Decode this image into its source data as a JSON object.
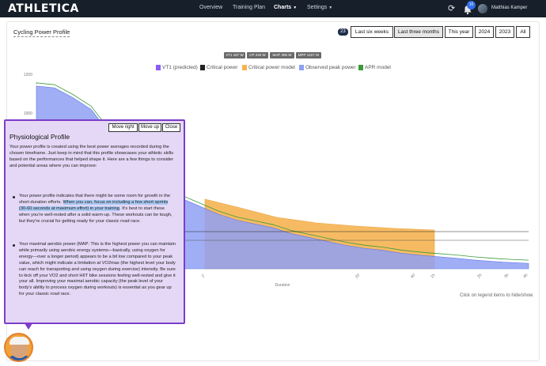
{
  "app": {
    "logo": "ATHLETICA"
  },
  "nav": {
    "items": [
      {
        "label": "Overview"
      },
      {
        "label": "Training Plan"
      },
      {
        "label": "Charts"
      },
      {
        "label": "Settings"
      }
    ],
    "notification_count": "10",
    "user_name": "Matthias Kamper"
  },
  "card": {
    "title": "Cycling Power Profile",
    "count_badge": "23",
    "ranges": [
      "Last six weeks",
      "Last three months",
      "This year",
      "2024",
      "2023",
      "All"
    ],
    "selected_range": "Last three months"
  },
  "stats": [
    "VT1 187 W",
    "CP 240 W",
    "MAP 305 W",
    "MPP 1227 W"
  ],
  "chart_data": {
    "type": "area",
    "title": "",
    "xlabel": "Duration",
    "ylabel": "",
    "y_ticks": [
      "1200",
      "1000"
    ],
    "x_ticks": [
      "2'",
      "20'",
      "40'",
      "1h",
      "2h",
      "3h",
      "4h"
    ],
    "legend": [
      {
        "name": "VT1 (predicted)",
        "color": "#8b5cf6"
      },
      {
        "name": "Critical power",
        "color": "#222222"
      },
      {
        "name": "Critical power model",
        "color": "#f5b451"
      },
      {
        "name": "Observed peak power",
        "color": "#8fa0f4"
      },
      {
        "name": "APR model",
        "color": "#3a9a3a"
      }
    ],
    "series": [
      {
        "name": "Observed peak power",
        "values": [
          1140,
          1130,
          1080,
          1020,
          900,
          780,
          690,
          620,
          560,
          520,
          480,
          450,
          430,
          410,
          380,
          360,
          340,
          320,
          305,
          295,
          280,
          270,
          262,
          255,
          245,
          238,
          232,
          228
        ]
      }
    ],
    "hint": "Click on legend items to hide/show."
  },
  "popover": {
    "buttons": [
      "Move right",
      "Move up",
      "Close"
    ],
    "title": "Physiological Profile",
    "intro": "Your power profile is created using the best power averages recorded during the chosen timeframe. Just keep in mind that this profile showcases your athletic skills based on the performances that helped shape it. Here are a few things to consider and potential areas where you can improve:",
    "bullet1_pre": "Your power profile indicates that there might be some room for growth in the short-duration efforts. ",
    "bullet1_hl": "When you can, focus on including a few short sprints (30-60 seconds at maximum effort) in your training",
    "bullet1_post": ". It's best to start these when you're well-rested after a solid warm-up. These workouts can be tough, but they're crucial for getting ready for your classic road race.",
    "bullet2": "Your maximal aerobic power (MAP: This is the highest power you can maintain while primarily using aerobic energy systems—basically, using oxygen for energy—over a longer period) appears to be a bit low compared to your peak value, which might indicate a limitation at VO2max (the highest level your body can reach for transporting and using oxygen during exercise) intensity. Be sure to kick off your VO2 and short HIIT bike sessions feeling well-rested and give it your all. Improving your maximal aerobic capacity (the peak level of your body's ability to process oxygen during workouts) is essential as you gear up for your classic road race."
  }
}
